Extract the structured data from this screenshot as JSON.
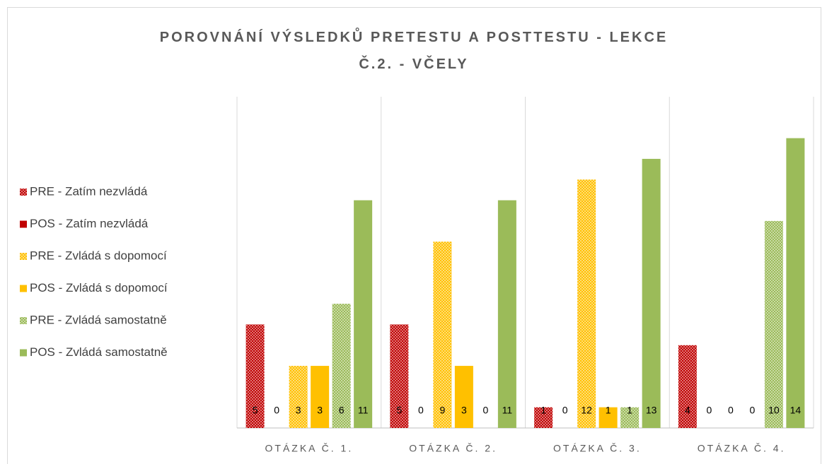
{
  "chart_data": {
    "type": "bar",
    "title": "POROVNÁNÍ VÝSLEDKŮ PRETESTU A POSTTESTU - LEKCE Č.2. - VČELY",
    "categories": [
      "OTÁZKA Č. 1.",
      "OTÁZKA Č. 2.",
      "OTÁZKA Č. 3.",
      "OTÁZKA Č. 4."
    ],
    "series": [
      {
        "name": "PRE - Zatím nezvládá",
        "color": "#c00000",
        "pattern": "dotted",
        "values": [
          5,
          5,
          1,
          4
        ]
      },
      {
        "name": "POS - Zatím nezvládá",
        "color": "#c00000",
        "values": [
          0,
          0,
          0,
          0
        ]
      },
      {
        "name": "PRE - Zvládá s dopomocí",
        "color": "#ffc000",
        "pattern": "dotted",
        "values": [
          3,
          9,
          12,
          0
        ]
      },
      {
        "name": "POS - Zvládá s dopomocí",
        "color": "#ffc000",
        "values": [
          3,
          3,
          1,
          0
        ]
      },
      {
        "name": "PRE - Zvládá samostatně",
        "color": "#9bbb59",
        "pattern": "dotted",
        "values": [
          6,
          0,
          1,
          10
        ]
      },
      {
        "name": "POS - Zvládá samostatně",
        "color": "#9bbb59",
        "values": [
          11,
          11,
          13,
          14
        ]
      }
    ],
    "ylim": [
      0,
      16
    ],
    "legend": "left"
  }
}
